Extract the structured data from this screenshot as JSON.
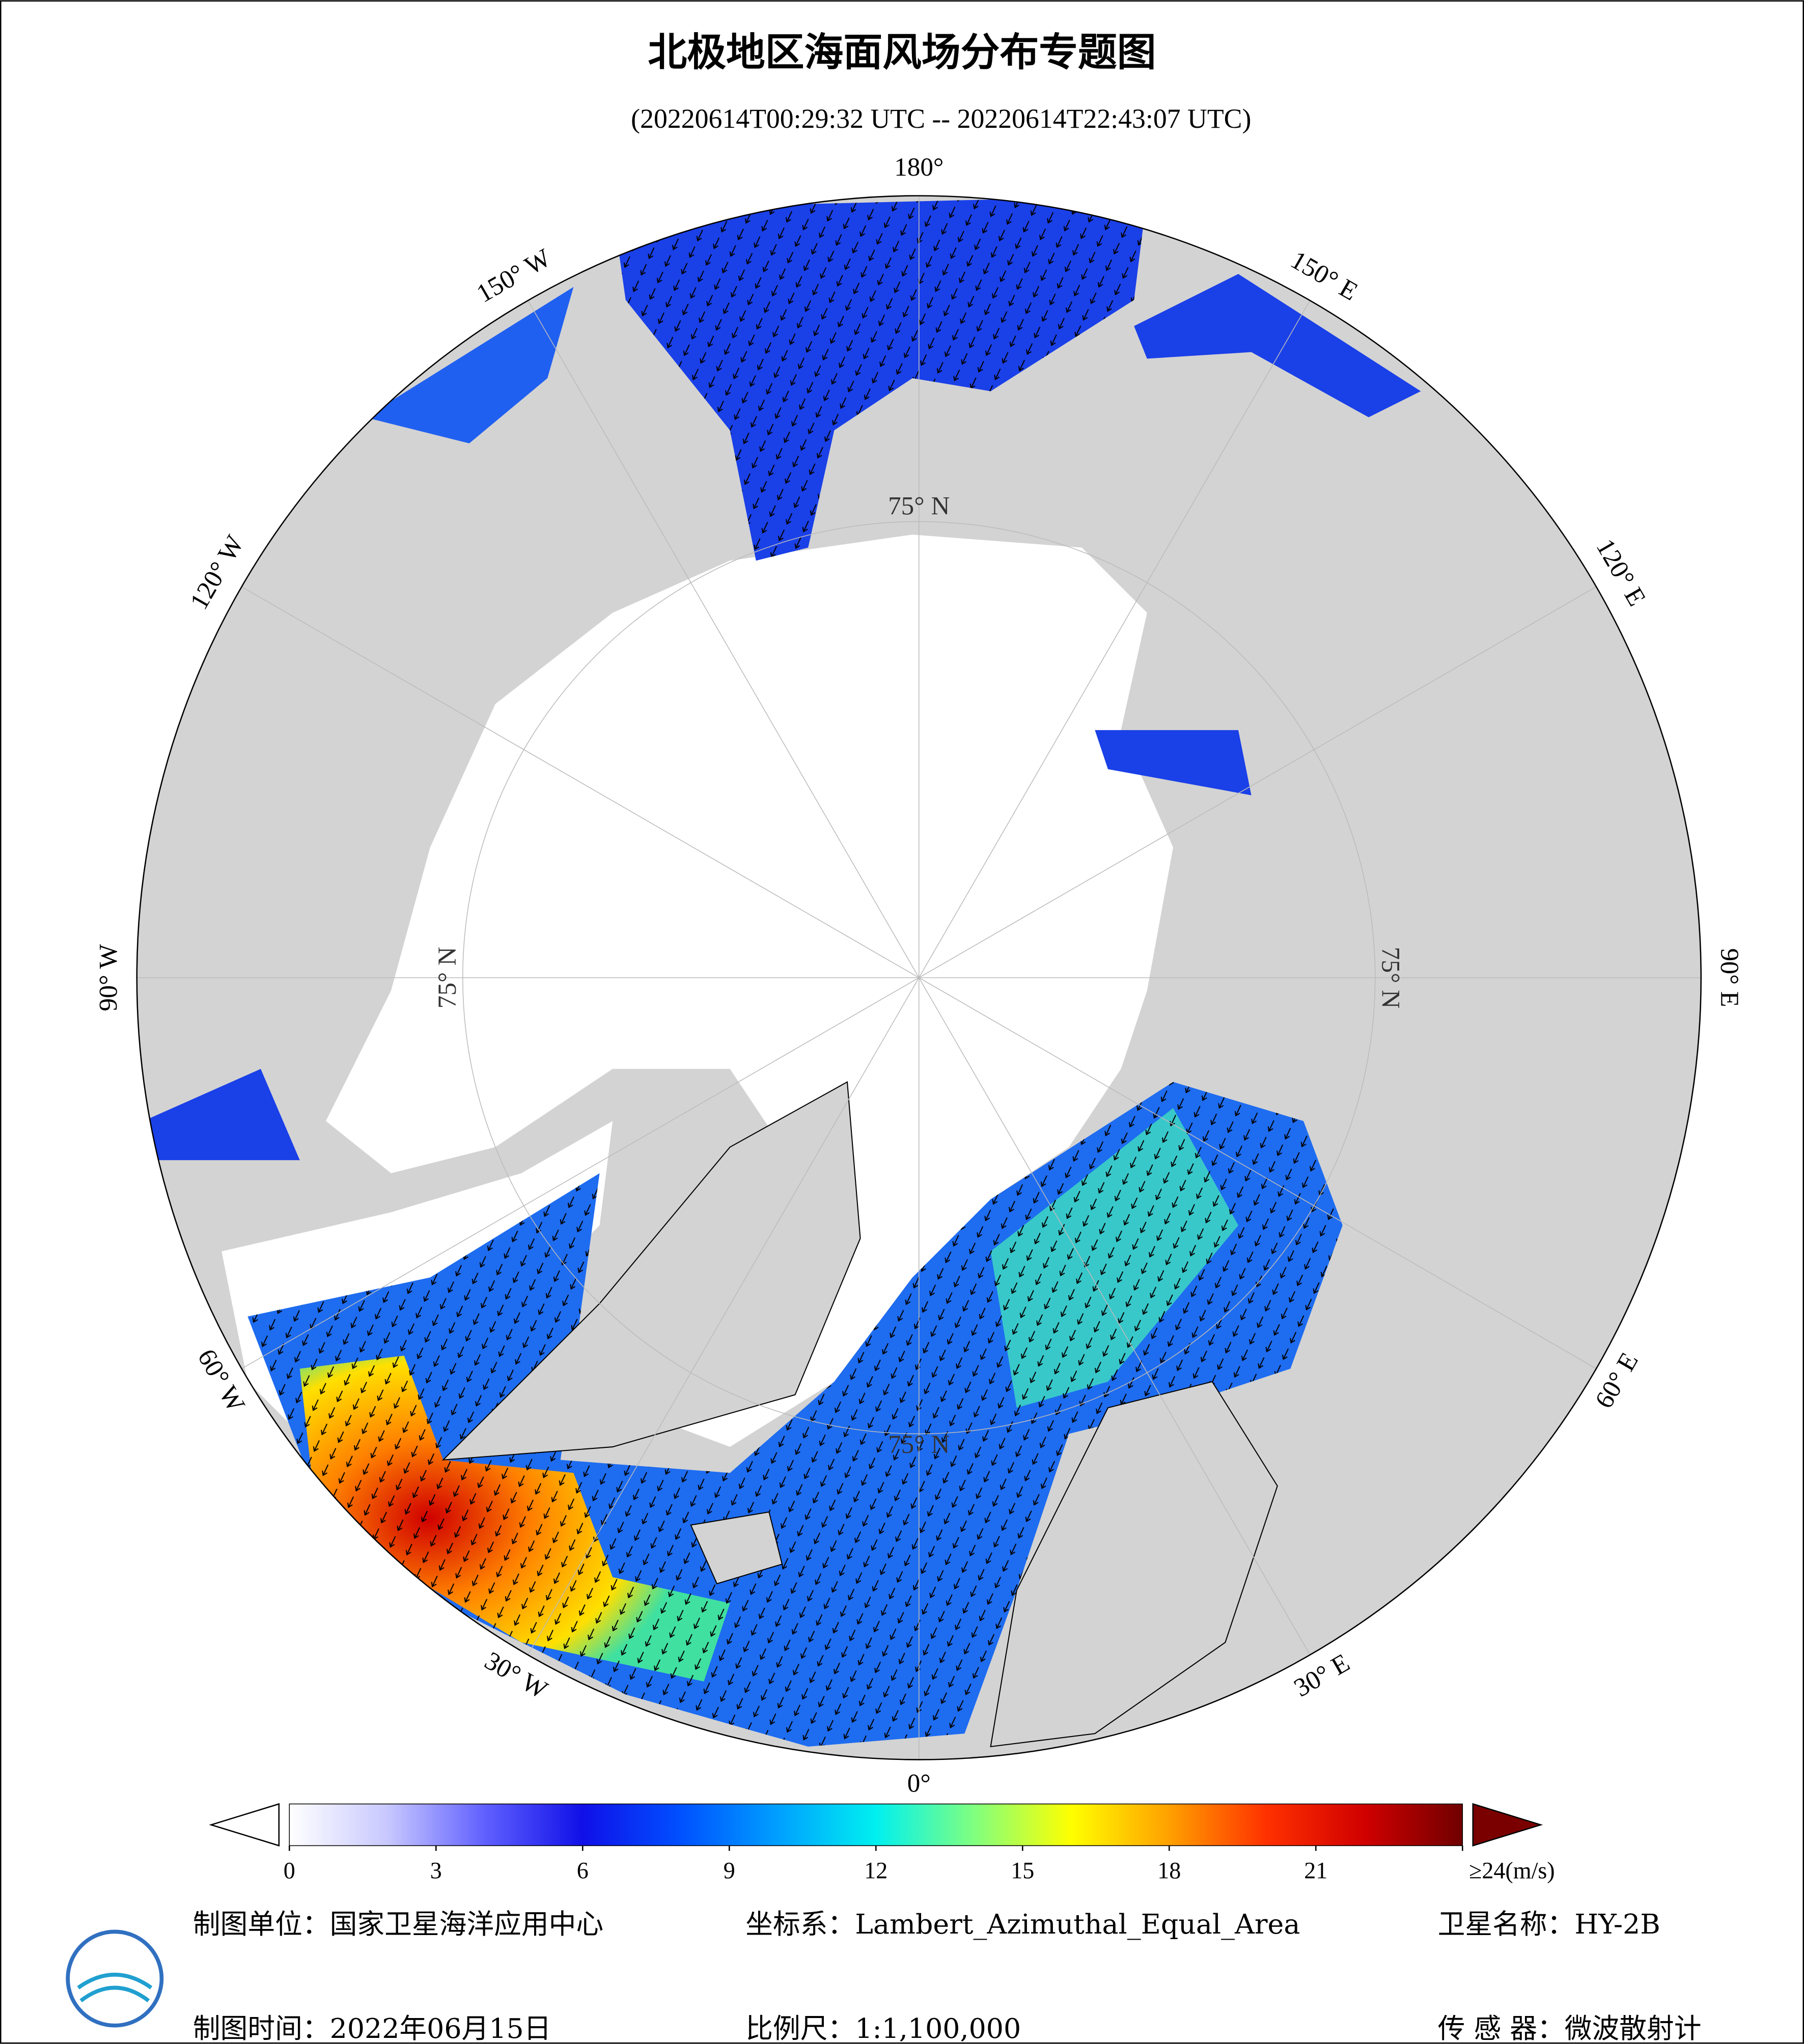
{
  "header": {
    "title": "北极地区海面风场分布专题图",
    "subtitle": "(20220614T00:29:32 UTC -- 20220614T22:43:07 UTC)"
  },
  "map": {
    "longitude_labels": [
      "180°",
      "150° E",
      "120° E",
      "90° E",
      "60° E",
      "30° E",
      "0°",
      "30° W",
      "60° W",
      "90° W",
      "120° W",
      "150° W"
    ],
    "latitude_label": "75° N"
  },
  "colorbar": {
    "range": [
      0,
      24
    ],
    "ticks": [
      0,
      3,
      6,
      9,
      12,
      15,
      18,
      21,
      {
        "value": 24,
        "label": "≥24(m/s)"
      }
    ],
    "colors": [
      "#ffffff",
      "#c8c8ff",
      "#6060ff",
      "#1010e8",
      "#0050ff",
      "#00a0ff",
      "#00f0f0",
      "#80ff80",
      "#ffff00",
      "#ffa000",
      "#ff3000",
      "#d00000",
      "#700000"
    ],
    "under_color": "#ffffff",
    "over_color": "#7a0000"
  },
  "footer": {
    "unit": "制图单位：国家卫星海洋应用中心",
    "crs": "坐标系：Lambert_Azimuthal_Equal_Area",
    "satellite": "卫星名称：HY-2B",
    "date": "制图时间：2022年06月15日",
    "scale": "比例尺：1:1,100,000",
    "sensor": "传 感 器：微波散射计"
  }
}
